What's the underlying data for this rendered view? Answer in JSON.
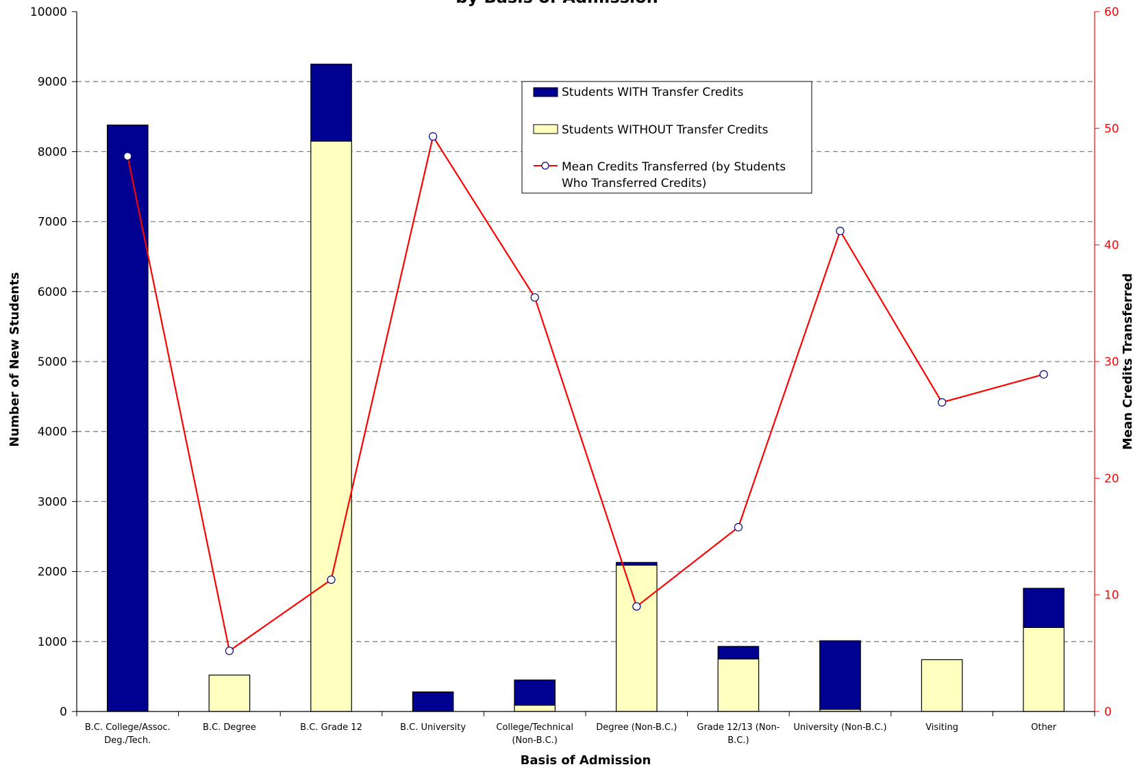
{
  "chart_data": {
    "type": "bar",
    "stacked": true,
    "title": "by Basis of Admission",
    "xlabel": "Basis of Admission",
    "ylabel": "Number of New Students",
    "y2label": "Mean Credits Transferred",
    "ylim": [
      0,
      10000
    ],
    "y2lim": [
      0,
      60
    ],
    "yticks": [
      "0",
      "1000",
      "2000",
      "3000",
      "4000",
      "5000",
      "6000",
      "7000",
      "8000",
      "9000",
      "10000"
    ],
    "y2ticks": [
      "0",
      "10",
      "20",
      "30",
      "40",
      "50",
      "60"
    ],
    "grid": "horizontal dashed",
    "legend_position": "top-center",
    "categories": [
      [
        "B.C. College/Assoc.",
        "Deg./Tech."
      ],
      [
        "B.C. Degree"
      ],
      [
        "B.C. Grade 12"
      ],
      [
        "B.C. University"
      ],
      [
        "College/Technical",
        "(Non-B.C.)"
      ],
      [
        "Degree (Non-B.C.)"
      ],
      [
        "Grade 12/13 (Non-",
        "B.C.)"
      ],
      [
        "University (Non-B.C.)"
      ],
      [
        "Visiting"
      ],
      [
        "Other"
      ]
    ],
    "series": [
      {
        "name": "Students WITHOUT Transfer Credits",
        "type": "bar",
        "axis": "left",
        "color": "#ffffc0",
        "values": [
          0,
          520,
          8150,
          0,
          90,
          2090,
          750,
          30,
          740,
          1200
        ]
      },
      {
        "name": "Students WITH Transfer Credits",
        "type": "bar",
        "axis": "left",
        "color": "#000090",
        "values": [
          8380,
          0,
          1100,
          280,
          360,
          40,
          180,
          980,
          0,
          560
        ]
      },
      {
        "name": "Mean Credits Transferred (by Students Who Transferred Credits)",
        "legend_lines": [
          "Mean Credits Transferred (by Students",
          "Who Transferred Credits)"
        ],
        "type": "line",
        "axis": "right",
        "color": "#ff0000",
        "values": [
          47.6,
          5.2,
          11.3,
          49.3,
          35.5,
          9.0,
          15.8,
          41.2,
          26.5,
          28.9
        ]
      }
    ]
  }
}
